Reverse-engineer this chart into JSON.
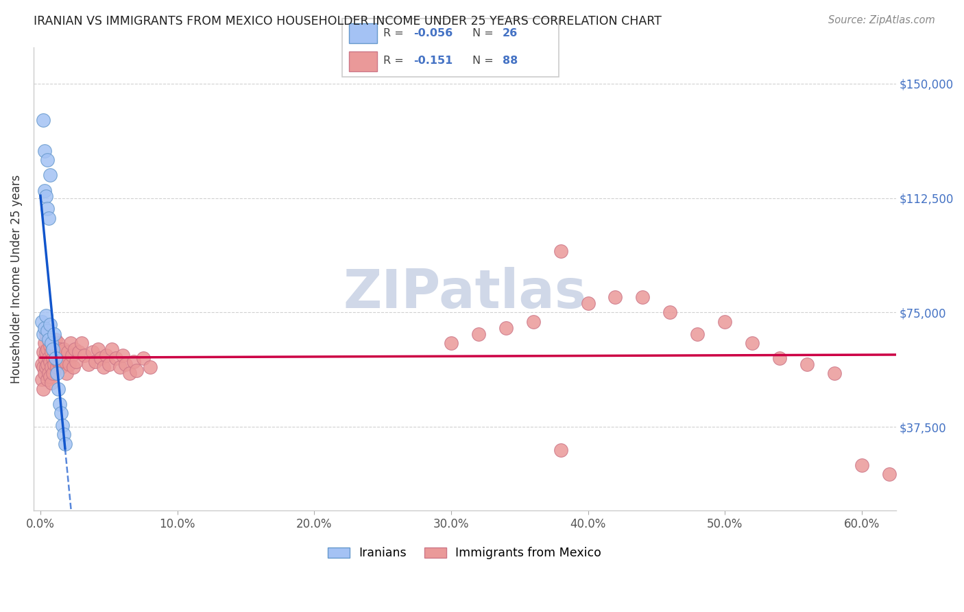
{
  "title": "IRANIAN VS IMMIGRANTS FROM MEXICO HOUSEHOLDER INCOME UNDER 25 YEARS CORRELATION CHART",
  "source": "Source: ZipAtlas.com",
  "ylabel": "Householder Income Under 25 years",
  "ytick_labels": [
    "$37,500",
    "$75,000",
    "$112,500",
    "$150,000"
  ],
  "ytick_values": [
    37500,
    75000,
    112500,
    150000
  ],
  "xlim": [
    -0.005,
    0.625
  ],
  "ylim": [
    10000,
    162000
  ],
  "iranians_R": -0.056,
  "iranians_N": 26,
  "mexico_R": -0.151,
  "mexico_N": 88,
  "blue_color": "#a4c2f4",
  "pink_color": "#ea9999",
  "blue_line_color": "#1155cc",
  "pink_line_color": "#cc0044",
  "blue_edge": "#6699cc",
  "pink_edge": "#cc7788",
  "watermark_color": "#d0d8e8",
  "iranians_x": [
    0.001,
    0.002,
    0.003,
    0.004,
    0.005,
    0.006,
    0.007,
    0.008,
    0.003,
    0.004,
    0.005,
    0.006,
    0.002,
    0.003,
    0.005,
    0.007,
    0.009,
    0.01,
    0.011,
    0.012,
    0.013,
    0.014,
    0.015,
    0.016,
    0.017,
    0.018
  ],
  "iranians_y": [
    72000,
    68000,
    70000,
    74000,
    69000,
    66000,
    71000,
    65000,
    115000,
    113000,
    109000,
    106000,
    138000,
    128000,
    125000,
    120000,
    63000,
    68000,
    60000,
    55000,
    50000,
    45000,
    42000,
    38000,
    35000,
    32000
  ],
  "mexico_x_dense": [
    0.001,
    0.001,
    0.002,
    0.002,
    0.002,
    0.003,
    0.003,
    0.003,
    0.004,
    0.004,
    0.004,
    0.005,
    0.005,
    0.005,
    0.006,
    0.006,
    0.006,
    0.007,
    0.007,
    0.007,
    0.008,
    0.008,
    0.008,
    0.009,
    0.009,
    0.009,
    0.01,
    0.01,
    0.011,
    0.011,
    0.012,
    0.012,
    0.013,
    0.013,
    0.014,
    0.014,
    0.015,
    0.015,
    0.016,
    0.017,
    0.018,
    0.019,
    0.02,
    0.021,
    0.022,
    0.023,
    0.024,
    0.025,
    0.026,
    0.028,
    0.03,
    0.032,
    0.035,
    0.038,
    0.04,
    0.042,
    0.044,
    0.046,
    0.048,
    0.05,
    0.052,
    0.055,
    0.058,
    0.06,
    0.062,
    0.065,
    0.068,
    0.07,
    0.075,
    0.08
  ],
  "mexico_y_dense": [
    58000,
    53000,
    62000,
    57000,
    50000,
    65000,
    60000,
    55000,
    68000,
    62000,
    57000,
    63000,
    58000,
    53000,
    66000,
    60000,
    55000,
    64000,
    59000,
    54000,
    62000,
    57000,
    52000,
    65000,
    60000,
    55000,
    63000,
    58000,
    66000,
    60000,
    62000,
    57000,
    65000,
    59000,
    63000,
    58000,
    62000,
    57000,
    60000,
    63000,
    59000,
    55000,
    62000,
    58000,
    65000,
    61000,
    57000,
    63000,
    59000,
    62000,
    65000,
    61000,
    58000,
    62000,
    59000,
    63000,
    60000,
    57000,
    61000,
    58000,
    63000,
    60000,
    57000,
    61000,
    58000,
    55000,
    59000,
    56000,
    60000,
    57000
  ],
  "mexico_x_sparse": [
    0.3,
    0.32,
    0.34,
    0.36,
    0.38,
    0.4,
    0.42,
    0.44,
    0.46,
    0.48,
    0.5,
    0.52,
    0.54,
    0.56,
    0.58,
    0.6,
    0.62,
    0.38
  ],
  "mexico_y_sparse": [
    65000,
    68000,
    70000,
    72000,
    95000,
    78000,
    80000,
    80000,
    75000,
    68000,
    72000,
    65000,
    60000,
    58000,
    55000,
    25000,
    22000,
    30000
  ]
}
